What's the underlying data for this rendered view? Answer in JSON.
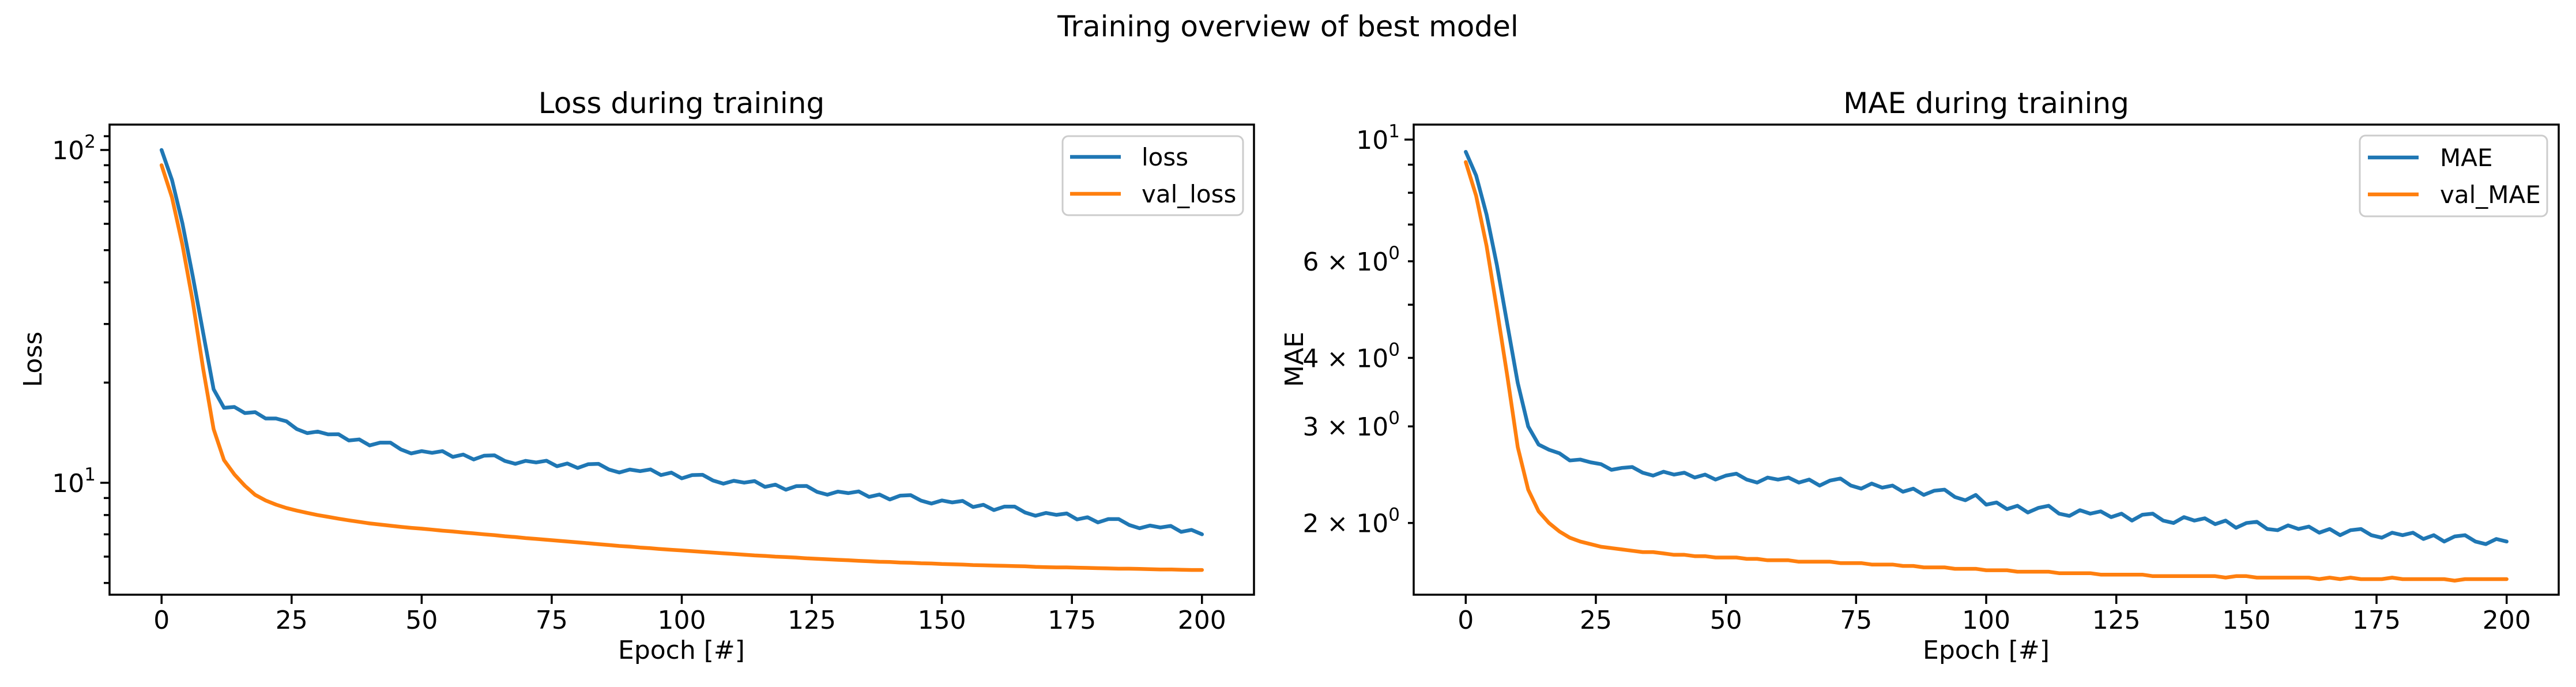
{
  "suptitle": "Training overview of best model",
  "colors": {
    "background": "#ffffff",
    "text": "#000000",
    "legend_border": "#cccccc",
    "series_blue": "#1f77b4",
    "series_orange": "#ff7f0e"
  },
  "chart_data": [
    {
      "type": "line",
      "title": "Loss during training",
      "xlabel": "Epoch [#]",
      "ylabel": "Loss",
      "xscale": "linear",
      "yscale": "log",
      "grid": false,
      "xlim": [
        -10,
        210
      ],
      "ylim": [
        4.61,
        119.2
      ],
      "x_ticks": [
        0,
        25,
        50,
        75,
        100,
        125,
        150,
        175,
        200
      ],
      "y_ticks_labeled": [
        {
          "value": 100,
          "coeff": "",
          "exp": "2"
        },
        {
          "value": 10,
          "coeff": "",
          "exp": "1"
        }
      ],
      "y_ticks_minor": [
        110,
        90,
        80,
        70,
        60,
        50,
        40,
        30,
        20,
        9,
        8,
        7,
        6,
        5
      ],
      "legend": {
        "position": "upper right",
        "labels": [
          "loss",
          "val_loss"
        ]
      },
      "x": [
        0,
        2,
        4,
        6,
        8,
        10,
        12,
        14,
        16,
        18,
        20,
        22,
        24,
        26,
        28,
        30,
        32,
        34,
        36,
        38,
        40,
        42,
        44,
        46,
        48,
        50,
        52,
        54,
        56,
        58,
        60,
        62,
        64,
        66,
        68,
        70,
        72,
        74,
        76,
        78,
        80,
        82,
        84,
        86,
        88,
        90,
        92,
        94,
        96,
        98,
        100,
        102,
        104,
        106,
        108,
        110,
        112,
        114,
        116,
        118,
        120,
        122,
        124,
        126,
        128,
        130,
        132,
        134,
        136,
        138,
        140,
        142,
        144,
        146,
        148,
        150,
        152,
        154,
        156,
        158,
        160,
        162,
        164,
        166,
        168,
        170,
        172,
        174,
        176,
        178,
        180,
        182,
        184,
        186,
        188,
        190,
        192,
        194,
        196,
        198,
        200
      ],
      "series": [
        {
          "name": "loss",
          "color": "#1f77b4",
          "values": [
            100.0,
            81.3,
            60.3,
            41.7,
            28.2,
            19.1,
            16.8,
            16.9,
            16.2,
            16.3,
            15.6,
            15.6,
            15.3,
            14.5,
            14.1,
            14.25,
            13.98,
            14.0,
            13.4,
            13.5,
            12.95,
            13.2,
            13.2,
            12.6,
            12.25,
            12.45,
            12.3,
            12.45,
            11.96,
            12.16,
            11.75,
            12.06,
            12.09,
            11.63,
            11.4,
            11.64,
            11.51,
            11.65,
            11.21,
            11.43,
            11.08,
            11.37,
            11.4,
            10.96,
            10.74,
            10.96,
            10.84,
            10.97,
            10.55,
            10.73,
            10.31,
            10.55,
            10.57,
            10.16,
            9.94,
            10.14,
            10.01,
            10.12,
            9.72,
            9.87,
            9.53,
            9.77,
            9.78,
            9.39,
            9.21,
            9.41,
            9.31,
            9.42,
            9.07,
            9.22,
            8.91,
            9.15,
            9.18,
            8.84,
            8.66,
            8.85,
            8.73,
            8.82,
            8.46,
            8.59,
            8.28,
            8.48,
            8.48,
            8.14,
            7.96,
            8.12,
            8.01,
            8.09,
            7.76,
            7.88,
            7.6,
            7.78,
            7.78,
            7.47,
            7.3,
            7.44,
            7.34,
            7.42,
            7.12,
            7.22,
            7.0
          ]
        },
        {
          "name": "val_loss",
          "color": "#ff7f0e",
          "values": [
            90,
            72,
            52,
            35,
            22,
            14.5,
            11.7,
            10.6,
            9.8,
            9.2,
            8.85,
            8.6,
            8.4,
            8.25,
            8.12,
            8.0,
            7.9,
            7.8,
            7.71,
            7.63,
            7.55,
            7.49,
            7.43,
            7.37,
            7.32,
            7.28,
            7.23,
            7.18,
            7.14,
            7.09,
            7.05,
            7.0,
            6.96,
            6.91,
            6.87,
            6.82,
            6.78,
            6.74,
            6.7,
            6.66,
            6.62,
            6.58,
            6.54,
            6.5,
            6.46,
            6.43,
            6.39,
            6.36,
            6.32,
            6.29,
            6.26,
            6.23,
            6.2,
            6.17,
            6.14,
            6.11,
            6.08,
            6.05,
            6.03,
            6.0,
            5.98,
            5.96,
            5.93,
            5.91,
            5.89,
            5.87,
            5.85,
            5.83,
            5.81,
            5.79,
            5.78,
            5.76,
            5.75,
            5.73,
            5.72,
            5.7,
            5.69,
            5.68,
            5.66,
            5.65,
            5.64,
            5.63,
            5.62,
            5.61,
            5.59,
            5.58,
            5.57,
            5.57,
            5.56,
            5.55,
            5.54,
            5.53,
            5.52,
            5.52,
            5.51,
            5.5,
            5.49,
            5.49,
            5.48,
            5.47,
            5.47
          ]
        }
      ]
    },
    {
      "type": "line",
      "title": "MAE during training",
      "xlabel": "Epoch [#]",
      "ylabel": "MAE",
      "xscale": "linear",
      "yscale": "log",
      "grid": false,
      "xlim": [
        -10,
        210
      ],
      "ylim": [
        1.48,
        10.65
      ],
      "x_ticks": [
        0,
        25,
        50,
        75,
        100,
        125,
        150,
        175,
        200
      ],
      "y_ticks_labeled": [
        {
          "value": 10,
          "coeff": "",
          "exp": "1"
        },
        {
          "value": 6,
          "coeff": "6",
          "exp": "0"
        },
        {
          "value": 4,
          "coeff": "4",
          "exp": "0"
        },
        {
          "value": 3,
          "coeff": "3",
          "exp": "0"
        },
        {
          "value": 2,
          "coeff": "2",
          "exp": "0"
        }
      ],
      "y_ticks_minor": [
        9,
        8,
        7,
        5
      ],
      "legend": {
        "position": "upper right",
        "labels": [
          "MAE",
          "val_MAE"
        ]
      },
      "x": [
        0,
        2,
        4,
        6,
        8,
        10,
        12,
        14,
        16,
        18,
        20,
        22,
        24,
        26,
        28,
        30,
        32,
        34,
        36,
        38,
        40,
        42,
        44,
        46,
        48,
        50,
        52,
        54,
        56,
        58,
        60,
        62,
        64,
        66,
        68,
        70,
        72,
        74,
        76,
        78,
        80,
        82,
        84,
        86,
        88,
        90,
        92,
        94,
        96,
        98,
        100,
        102,
        104,
        106,
        108,
        110,
        112,
        114,
        116,
        118,
        120,
        122,
        124,
        126,
        128,
        130,
        132,
        134,
        136,
        138,
        140,
        142,
        144,
        146,
        148,
        150,
        152,
        154,
        156,
        158,
        160,
        162,
        164,
        166,
        168,
        170,
        172,
        174,
        176,
        178,
        180,
        182,
        184,
        186,
        188,
        190,
        192,
        194,
        196,
        198,
        200
      ],
      "series": [
        {
          "name": "MAE",
          "color": "#1f77b4",
          "values": [
            9.5,
            8.6,
            7.3,
            5.9,
            4.6,
            3.6,
            3.0,
            2.78,
            2.72,
            2.68,
            2.6,
            2.61,
            2.58,
            2.56,
            2.5,
            2.52,
            2.53,
            2.47,
            2.44,
            2.48,
            2.45,
            2.47,
            2.42,
            2.45,
            2.4,
            2.44,
            2.46,
            2.4,
            2.37,
            2.42,
            2.4,
            2.42,
            2.37,
            2.4,
            2.34,
            2.39,
            2.41,
            2.34,
            2.31,
            2.36,
            2.32,
            2.34,
            2.28,
            2.31,
            2.25,
            2.29,
            2.3,
            2.23,
            2.2,
            2.25,
            2.16,
            2.18,
            2.12,
            2.15,
            2.09,
            2.13,
            2.15,
            2.08,
            2.06,
            2.11,
            2.08,
            2.1,
            2.05,
            2.08,
            2.02,
            2.07,
            2.08,
            2.02,
            2.0,
            2.05,
            2.02,
            2.04,
            1.99,
            2.02,
            1.96,
            2.0,
            2.01,
            1.95,
            1.94,
            1.98,
            1.95,
            1.97,
            1.92,
            1.95,
            1.9,
            1.94,
            1.95,
            1.9,
            1.88,
            1.92,
            1.9,
            1.92,
            1.87,
            1.9,
            1.85,
            1.89,
            1.9,
            1.85,
            1.83,
            1.87,
            1.85
          ]
        },
        {
          "name": "val_MAE",
          "color": "#ff7f0e",
          "values": [
            9.1,
            7.9,
            6.4,
            4.9,
            3.7,
            2.75,
            2.3,
            2.1,
            2.0,
            1.93,
            1.88,
            1.85,
            1.83,
            1.81,
            1.8,
            1.79,
            1.78,
            1.77,
            1.77,
            1.76,
            1.75,
            1.75,
            1.74,
            1.74,
            1.73,
            1.73,
            1.73,
            1.72,
            1.72,
            1.71,
            1.71,
            1.71,
            1.7,
            1.7,
            1.7,
            1.7,
            1.69,
            1.69,
            1.69,
            1.68,
            1.68,
            1.68,
            1.67,
            1.67,
            1.66,
            1.66,
            1.66,
            1.65,
            1.65,
            1.65,
            1.64,
            1.64,
            1.64,
            1.63,
            1.63,
            1.63,
            1.63,
            1.62,
            1.62,
            1.62,
            1.62,
            1.61,
            1.61,
            1.61,
            1.61,
            1.61,
            1.6,
            1.6,
            1.6,
            1.6,
            1.6,
            1.6,
            1.6,
            1.59,
            1.6,
            1.6,
            1.59,
            1.59,
            1.59,
            1.59,
            1.59,
            1.59,
            1.58,
            1.59,
            1.58,
            1.59,
            1.58,
            1.58,
            1.58,
            1.59,
            1.58,
            1.58,
            1.58,
            1.58,
            1.58,
            1.57,
            1.58,
            1.58,
            1.58,
            1.58,
            1.58
          ]
        }
      ]
    }
  ]
}
